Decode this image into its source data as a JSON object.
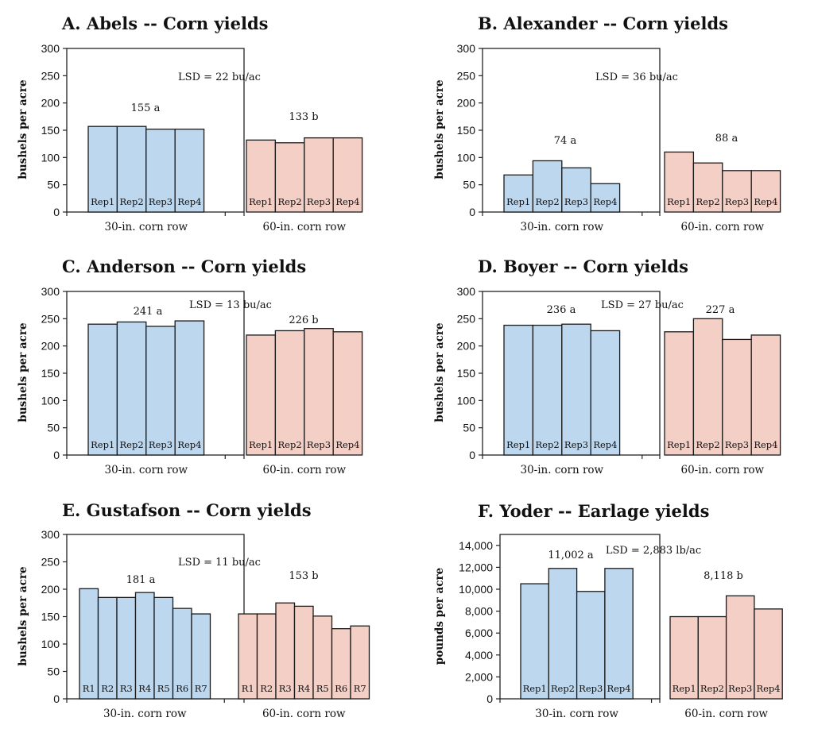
{
  "chart_data": [
    {
      "type": "bar",
      "title": "A. Abels -- Corn yields",
      "ylabel": "bushels per acre",
      "ylim": [
        0,
        300
      ],
      "yticks": [
        "0",
        "50",
        "100",
        "150",
        "200",
        "250",
        "300"
      ],
      "groups": [
        {
          "name": "30-in. corn row",
          "color": "#bdd7ee",
          "mean_label": "155 a",
          "bar_labels": [
            "Rep1",
            "Rep2",
            "Rep3",
            "Rep4"
          ],
          "values": [
            157,
            157,
            152,
            152
          ]
        },
        {
          "name": "60-in. corn row",
          "color": "#f4cfc6",
          "mean_label": "133 b",
          "bar_labels": [
            "Rep1",
            "Rep2",
            "Rep3",
            "Rep4"
          ],
          "values": [
            132,
            127,
            136,
            136
          ]
        }
      ],
      "lsd": "LSD = 22 bu/ac"
    },
    {
      "type": "bar",
      "title": "B. Alexander -- Corn yields",
      "ylabel": "bushels per acre",
      "ylim": [
        0,
        300
      ],
      "yticks": [
        "0",
        "50",
        "100",
        "150",
        "200",
        "250",
        "300"
      ],
      "groups": [
        {
          "name": "30-in. corn row",
          "color": "#bdd7ee",
          "mean_label": "74 a",
          "bar_labels": [
            "Rep1",
            "Rep2",
            "Rep3",
            "Rep4"
          ],
          "values": [
            68,
            94,
            81,
            52
          ]
        },
        {
          "name": "60-in. corn row",
          "color": "#f4cfc6",
          "mean_label": "88 a",
          "bar_labels": [
            "Rep1",
            "Rep2",
            "Rep3",
            "Rep4"
          ],
          "values": [
            110,
            90,
            76,
            76
          ]
        }
      ],
      "lsd": "LSD = 36 bu/ac"
    },
    {
      "type": "bar",
      "title": "C. Anderson -- Corn yields",
      "ylabel": "bushels per acre",
      "ylim": [
        0,
        300
      ],
      "yticks": [
        "0",
        "50",
        "100",
        "150",
        "200",
        "250",
        "300"
      ],
      "groups": [
        {
          "name": "30-in. corn row",
          "color": "#bdd7ee",
          "mean_label": "241 a",
          "bar_labels": [
            "Rep1",
            "Rep2",
            "Rep3",
            "Rep4"
          ],
          "values": [
            240,
            244,
            236,
            246
          ]
        },
        {
          "name": "60-in. corn row",
          "color": "#f4cfc6",
          "mean_label": "226 b",
          "bar_labels": [
            "Rep1",
            "Rep2",
            "Rep3",
            "Rep4"
          ],
          "values": [
            220,
            228,
            232,
            226
          ]
        }
      ],
      "lsd": "LSD = 13 bu/ac"
    },
    {
      "type": "bar",
      "title": "D. Boyer -- Corn yields",
      "ylabel": "bushels per acre",
      "ylim": [
        0,
        300
      ],
      "yticks": [
        "0",
        "50",
        "100",
        "150",
        "200",
        "250",
        "300"
      ],
      "groups": [
        {
          "name": "30-in. corn row",
          "color": "#bdd7ee",
          "mean_label": "236 a",
          "bar_labels": [
            "Rep1",
            "Rep2",
            "Rep3",
            "Rep4"
          ],
          "values": [
            238,
            238,
            240,
            228
          ]
        },
        {
          "name": "60-in. corn row",
          "color": "#f4cfc6",
          "mean_label": "227 a",
          "bar_labels": [
            "Rep1",
            "Rep2",
            "Rep3",
            "Rep4"
          ],
          "values": [
            226,
            250,
            212,
            220
          ]
        }
      ],
      "lsd": "LSD = 27 bu/ac"
    },
    {
      "type": "bar",
      "title": "E. Gustafson -- Corn yields",
      "ylabel": "bushels per acre",
      "ylim": [
        0,
        300
      ],
      "yticks": [
        "0",
        "50",
        "100",
        "150",
        "200",
        "250",
        "300"
      ],
      "groups": [
        {
          "name": "30-in. corn row",
          "color": "#bdd7ee",
          "mean_label": "181 a",
          "bar_labels": [
            "R1",
            "R2",
            "R3",
            "R4",
            "R5",
            "R6",
            "R7"
          ],
          "values": [
            201,
            185,
            185,
            194,
            185,
            165,
            155
          ]
        },
        {
          "name": "60-in. corn row",
          "color": "#f4cfc6",
          "mean_label": "153 b",
          "bar_labels": [
            "R1",
            "R2",
            "R3",
            "R4",
            "R5",
            "R6",
            "R7"
          ],
          "values": [
            155,
            155,
            175,
            169,
            151,
            128,
            133
          ]
        }
      ],
      "lsd": "LSD = 11 bu/ac"
    },
    {
      "type": "bar",
      "title": "F. Yoder -- Earlage yields",
      "ylabel": "pounds per acre",
      "ylim": [
        0,
        15000
      ],
      "yticks": [
        "0",
        "2,000",
        "4,000",
        "6,000",
        "8,000",
        "10,000",
        "12,000",
        "14,000"
      ],
      "groups": [
        {
          "name": "30-in. corn row",
          "color": "#bdd7ee",
          "mean_label": "11,002 a",
          "bar_labels": [
            "Rep1",
            "Rep2",
            "Rep3",
            "Rep4"
          ],
          "values": [
            10500,
            11900,
            9800,
            11900
          ]
        },
        {
          "name": "60-in. corn row",
          "color": "#f4cfc6",
          "mean_label": "8,118 b",
          "bar_labels": [
            "Rep1",
            "Rep2",
            "Rep3",
            "Rep4"
          ],
          "values": [
            7500,
            7500,
            9400,
            8200
          ]
        }
      ],
      "lsd": "LSD = 2,883 lb/ac"
    }
  ]
}
